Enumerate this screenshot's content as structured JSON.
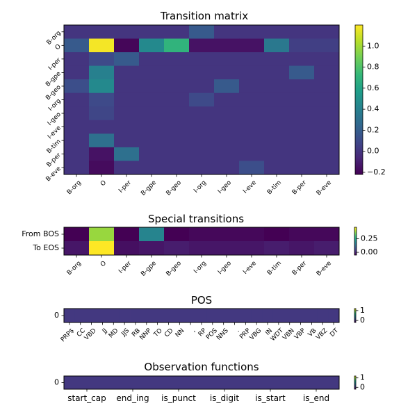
{
  "colormap": [
    "#440154",
    "#482878",
    "#3e4989",
    "#31688e",
    "#26828e",
    "#1f9e89",
    "#35b779",
    "#6ece58",
    "#b5de2b",
    "#fde725"
  ],
  "chart_data": [
    {
      "type": "heatmap",
      "title": "Transition matrix",
      "x_categories": [
        "B-org",
        "O",
        "I-per",
        "B-gpe",
        "B-geo",
        "I-org",
        "I-geo",
        "I-eve",
        "B-tim",
        "B-per",
        "B-eve"
      ],
      "y_categories": [
        "B-org",
        "O",
        "I-per",
        "B-gpe",
        "B-geo",
        "I-org",
        "I-geo",
        "I-eve",
        "B-tim",
        "B-per",
        "B-eve"
      ],
      "values": [
        [
          0.0,
          0.0,
          0.0,
          0.0,
          0.0,
          0.18,
          0.0,
          0.0,
          0.0,
          0.0,
          0.0
        ],
        [
          0.18,
          1.18,
          -0.2,
          0.45,
          0.7,
          -0.15,
          -0.15,
          -0.15,
          0.35,
          0.05,
          0.05
        ],
        [
          0.0,
          0.1,
          0.18,
          0.0,
          0.0,
          0.0,
          0.0,
          0.0,
          0.0,
          0.0,
          0.0
        ],
        [
          0.0,
          0.4,
          0.0,
          0.0,
          0.0,
          0.0,
          0.0,
          0.0,
          0.0,
          0.18,
          0.0
        ],
        [
          0.12,
          0.45,
          0.0,
          0.0,
          0.0,
          0.0,
          0.18,
          0.0,
          0.0,
          0.0,
          0.0
        ],
        [
          0.0,
          0.1,
          0.0,
          0.0,
          0.0,
          0.1,
          0.0,
          0.0,
          0.0,
          0.0,
          0.0
        ],
        [
          0.0,
          0.08,
          0.0,
          0.0,
          0.0,
          0.0,
          0.0,
          0.0,
          0.0,
          0.0,
          0.0
        ],
        [
          0.0,
          0.0,
          0.0,
          0.0,
          0.0,
          0.0,
          0.0,
          0.0,
          0.0,
          0.0,
          0.0
        ],
        [
          0.0,
          0.3,
          0.0,
          0.0,
          0.0,
          0.0,
          0.0,
          0.0,
          0.0,
          0.0,
          0.0
        ],
        [
          0.0,
          -0.15,
          0.3,
          0.0,
          0.0,
          0.0,
          0.0,
          0.0,
          0.0,
          0.0,
          0.0
        ],
        [
          0.0,
          -0.18,
          0.0,
          0.0,
          0.0,
          0.0,
          0.0,
          0.12,
          0.0,
          0.0,
          0.0
        ]
      ],
      "vmin": -0.22,
      "vmax": 1.2,
      "colorbar_ticks": [
        -0.2,
        0.0,
        0.2,
        0.4,
        0.6,
        0.8,
        1.0
      ],
      "colorbar_tick_labels": [
        "−0.2",
        "0.0",
        "0.2",
        "0.4",
        "0.6",
        "0.8",
        "1.0"
      ]
    },
    {
      "type": "heatmap",
      "title": "Special transitions",
      "x_categories": [
        "B-org",
        "O",
        "I-per",
        "B-gpe",
        "B-geo",
        "I-org",
        "I-geo",
        "I-eve",
        "B-tim",
        "B-per",
        "B-eve"
      ],
      "y_categories": [
        "From BOS",
        "To EOS"
      ],
      "values": [
        [
          -0.05,
          0.38,
          -0.05,
          0.18,
          -0.05,
          -0.04,
          -0.04,
          -0.04,
          -0.05,
          -0.04,
          -0.04
        ],
        [
          -0.02,
          0.46,
          -0.03,
          -0.02,
          -0.01,
          -0.02,
          -0.02,
          -0.02,
          -0.01,
          -0.02,
          -0.01
        ]
      ],
      "vmin": -0.05,
      "vmax": 0.46,
      "colorbar_ticks": [
        0.0,
        0.25
      ],
      "colorbar_tick_labels": [
        "0.00",
        "0.25"
      ]
    },
    {
      "type": "heatmap",
      "title": "POS",
      "x_categories": [
        "PRP$",
        "CC",
        "VBD",
        "JJ",
        "MD",
        "JJS",
        "RB",
        "NNP",
        "TO",
        "CD",
        "NN",
        ",",
        "RP",
        "POS",
        "NNS",
        ".",
        "PRP",
        "VBG",
        "IN",
        "WDT",
        "VBN",
        "VBP",
        "VB",
        "VBZ",
        "DT"
      ],
      "y_categories": [
        "0"
      ],
      "values": [
        [
          0.03,
          0.03,
          0.03,
          0.03,
          0.03,
          0.03,
          0.03,
          0.03,
          0.03,
          0.03,
          0.03,
          0.03,
          0.03,
          0.03,
          0.03,
          0.03,
          0.03,
          0.03,
          0.03,
          0.03,
          0.03,
          0.03,
          0.03,
          0.03,
          0.03
        ]
      ],
      "vmin": -0.2,
      "vmax": 1.2,
      "colorbar_ticks": [
        0,
        1
      ],
      "colorbar_tick_labels": [
        "0",
        "1"
      ]
    },
    {
      "type": "heatmap",
      "title": "Observation functions",
      "x_categories": [
        "start_cap",
        "end_ing",
        "is_punct",
        "is_digit",
        "is_start",
        "is_end"
      ],
      "y_categories": [
        "0"
      ],
      "values": [
        [
          0.03,
          0.03,
          0.03,
          0.03,
          0.03,
          0.03
        ]
      ],
      "vmin": -0.2,
      "vmax": 1.2,
      "colorbar_ticks": [
        0,
        1
      ],
      "colorbar_tick_labels": [
        "0",
        "1"
      ]
    }
  ]
}
